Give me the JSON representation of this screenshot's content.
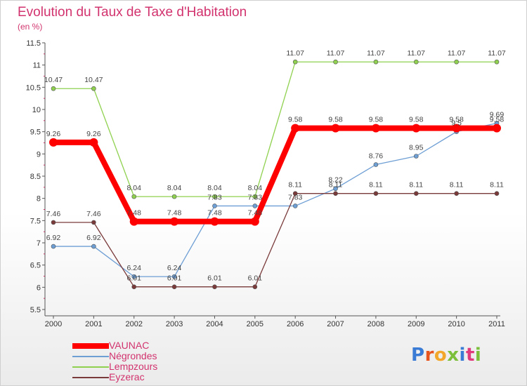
{
  "header": {
    "title": "Evolution du Taux de Taxe d'Habitation",
    "unit_note": "(en %)"
  },
  "logo": {
    "text": "Proxiti",
    "letter_colors": [
      "#3a7bd5",
      "#e8541e",
      "#f2a72b",
      "#7cbf3a",
      "#3a7bd5",
      "#e03a7c",
      "#7cbf3a"
    ]
  },
  "chart_data": {
    "type": "line",
    "title": "Evolution du Taux de Taxe d'Habitation",
    "ylabel": "(en %)",
    "xlabel": "",
    "x": [
      "2000",
      "2001",
      "2002",
      "2003",
      "2004",
      "2005",
      "2006",
      "2007",
      "2008",
      "2009",
      "2010",
      "2011"
    ],
    "ylim": [
      5.5,
      11.5
    ],
    "yticks": [
      "5.5",
      "6",
      "6.5",
      "7",
      "7.5",
      "8",
      "8.5",
      "9",
      "9.5",
      "10",
      "10.5",
      "11",
      "11.5"
    ],
    "grid": false,
    "legend": "bottom-left",
    "series": [
      {
        "name": "VAUNAC",
        "color": "#ff0000",
        "values": [
          9.26,
          9.26,
          7.48,
          7.48,
          7.48,
          7.48,
          9.58,
          9.58,
          9.58,
          9.58,
          9.58,
          9.58
        ],
        "labels": [
          "9.26",
          "9.26",
          "7.48",
          "7.48",
          "7.48",
          "7.48",
          "9.58",
          "9.58",
          "9.58",
          "9.58",
          "9.58",
          "9.58"
        ]
      },
      {
        "name": "Négrondes",
        "color": "#6d9ed4",
        "values": [
          6.92,
          6.92,
          6.24,
          6.24,
          7.83,
          7.83,
          7.83,
          8.22,
          8.76,
          8.95,
          9.5,
          9.69
        ],
        "labels": [
          "6.92",
          "6.92",
          "6.24",
          "6.24",
          "7.83",
          "7.83",
          "7.83",
          "8.22",
          "8.76",
          "8.95",
          "9.5",
          "9.69"
        ]
      },
      {
        "name": "Lempzours",
        "color": "#8fd14f",
        "values": [
          10.47,
          10.47,
          8.04,
          8.04,
          8.04,
          8.04,
          11.07,
          11.07,
          11.07,
          11.07,
          11.07,
          11.07
        ],
        "labels": [
          "10.47",
          "10.47",
          "8.04",
          "8.04",
          "8.04",
          "8.04",
          "11.07",
          "11.07",
          "11.07",
          "11.07",
          "11.07",
          "11.07"
        ]
      },
      {
        "name": "Eyzerac",
        "color": "#7a3a3a",
        "values": [
          7.46,
          7.46,
          6.01,
          6.01,
          6.01,
          6.01,
          8.11,
          8.11,
          8.11,
          8.11,
          8.11,
          8.11
        ],
        "labels": [
          "7.46",
          "7.46",
          "6.01",
          "6.01",
          "6.01",
          "6.01",
          "8.11",
          "8.11",
          "8.11",
          "8.11",
          "8.11",
          "8.11"
        ]
      }
    ]
  }
}
